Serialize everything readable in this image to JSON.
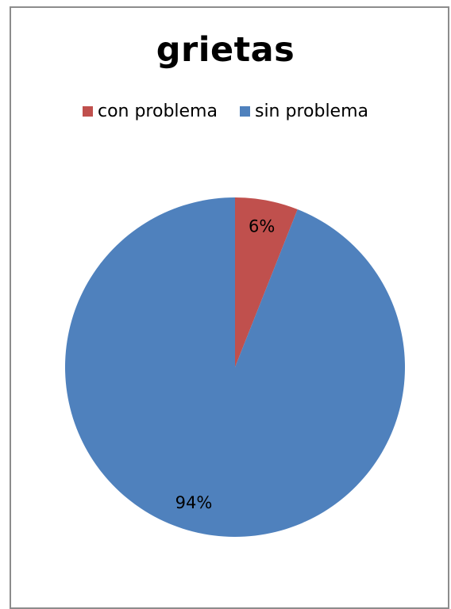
{
  "chart_data": {
    "type": "pie",
    "title": "grietas",
    "legend_placement": "top",
    "slices": [
      {
        "name": "con problema",
        "value": 6,
        "label": "6%",
        "color": "#c0504d"
      },
      {
        "name": "sin problema",
        "value": 94,
        "label": "94%",
        "color": "#4f81bd"
      }
    ]
  }
}
